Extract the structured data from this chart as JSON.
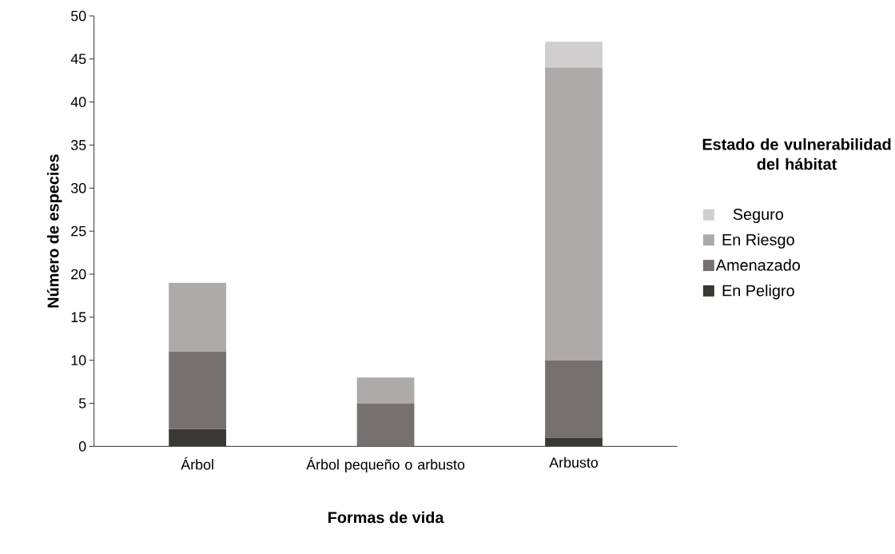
{
  "chart_data": {
    "type": "bar",
    "stacked": true,
    "xlabel": "Formas de vida",
    "ylabel": "Número de especies",
    "legend_title": "Estado de vulnerabilidad del hábitat",
    "legend": "right",
    "categories": [
      "Árbol",
      "Árbol pequeño o arbusto",
      "Arbusto"
    ],
    "series": [
      {
        "name": "En Peligro",
        "color": "#3a3835",
        "values": [
          2,
          0,
          1
        ]
      },
      {
        "name": "Amenazado",
        "color": "#767170",
        "values": [
          9,
          5,
          9
        ]
      },
      {
        "name": "En Riesgo",
        "color": "#aeaaaa",
        "values": [
          8,
          3,
          34
        ]
      },
      {
        "name": "Seguro",
        "color": "#d0cece",
        "values": [
          0,
          0,
          3
        ]
      }
    ],
    "ylim": [
      0,
      50
    ],
    "yticks": [
      0,
      5,
      10,
      15,
      20,
      25,
      30,
      35,
      40,
      45,
      50
    ]
  }
}
